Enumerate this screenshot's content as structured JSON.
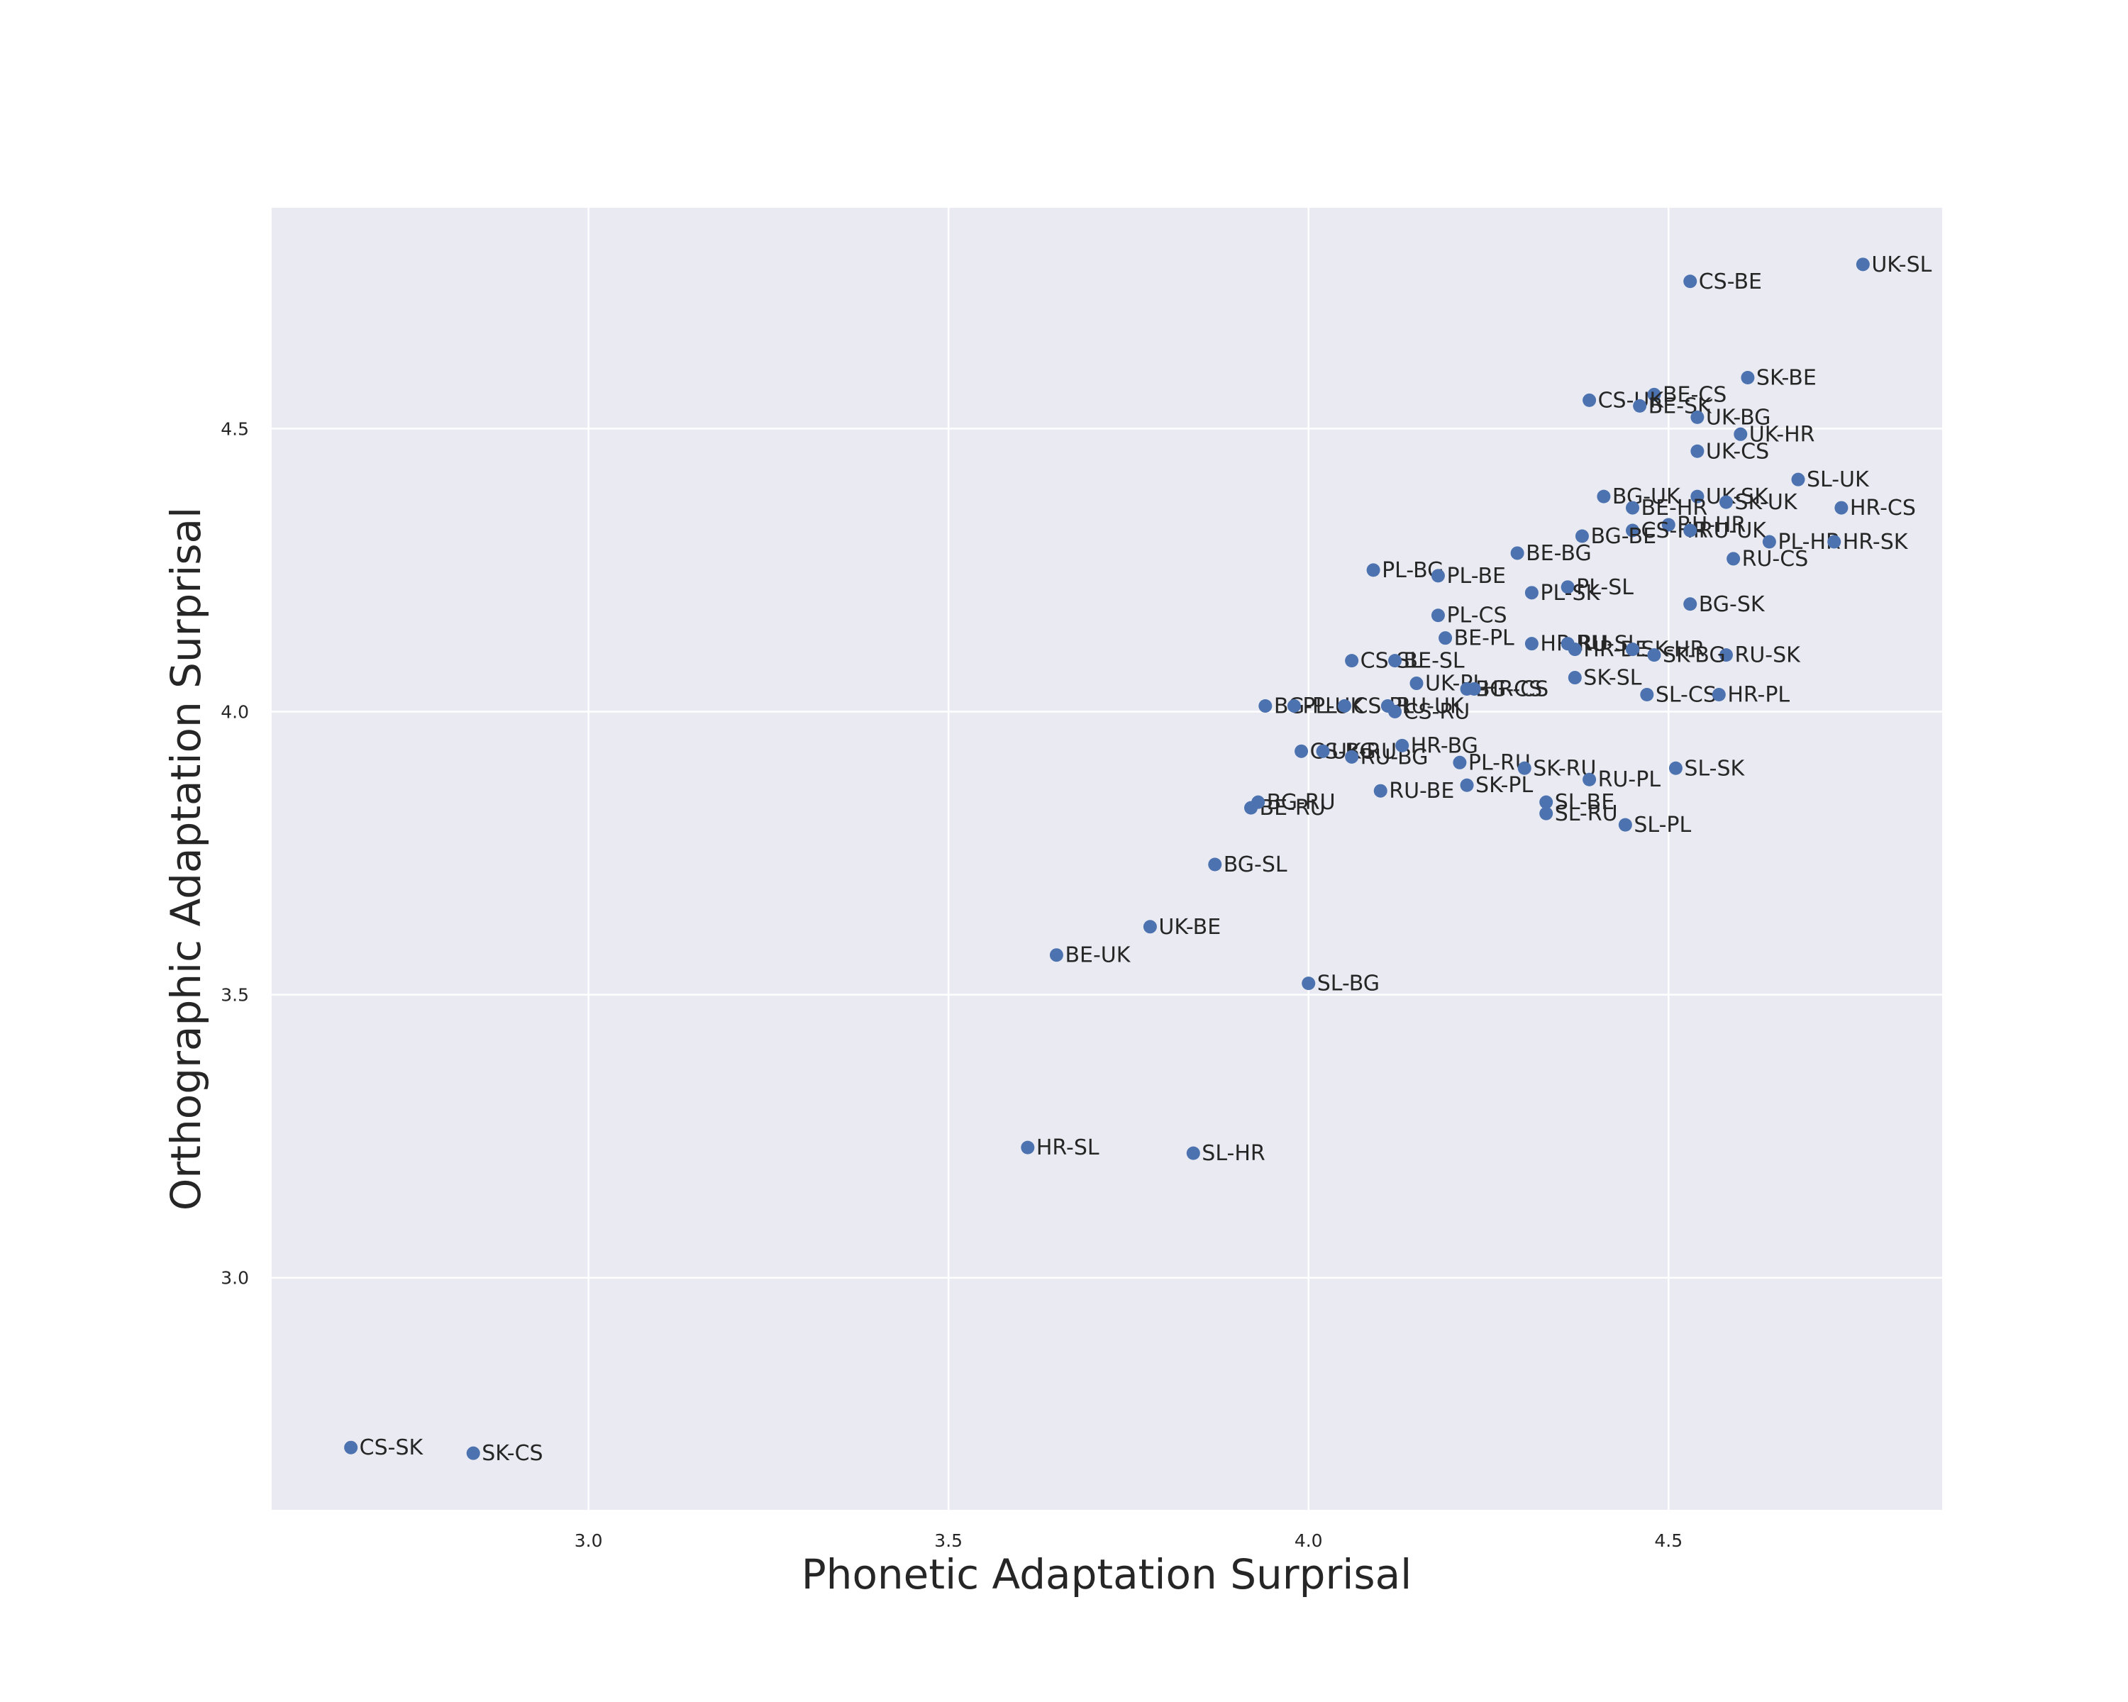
{
  "chart_data": {
    "type": "scatter",
    "title": "",
    "xlabel": "Phonetic Adaptation Surprisal",
    "ylabel": "Orthographic Adaptation Surprisal",
    "xlim": [
      2.56,
      4.88
    ],
    "ylim": [
      2.59,
      4.89
    ],
    "xticks": [
      3.0,
      3.5,
      4.0,
      4.5
    ],
    "yticks": [
      3.0,
      3.5,
      4.0,
      4.5
    ],
    "xtick_labels": [
      "3.0",
      "3.5",
      "4.0",
      "4.5"
    ],
    "ytick_labels": [
      "3.0",
      "3.5",
      "4.0",
      "4.5"
    ],
    "grid": true,
    "colors": {
      "points": "#4C72B0",
      "plot_background": "#EAEAF2",
      "grid": "#FFFFFF",
      "text": "#262626"
    },
    "points": [
      {
        "label": "UK-SL",
        "x": 4.77,
        "y": 4.79
      },
      {
        "label": "CS-BE",
        "x": 4.53,
        "y": 4.76
      },
      {
        "label": "SK-BE",
        "x": 4.61,
        "y": 4.59
      },
      {
        "label": "BE-CS",
        "x": 4.48,
        "y": 4.56
      },
      {
        "label": "CS-UK",
        "x": 4.39,
        "y": 4.55
      },
      {
        "label": "BE-SK",
        "x": 4.46,
        "y": 4.54
      },
      {
        "label": "UK-BG",
        "x": 4.54,
        "y": 4.52
      },
      {
        "label": "UK-HR",
        "x": 4.6,
        "y": 4.49
      },
      {
        "label": "UK-CS",
        "x": 4.54,
        "y": 4.46
      },
      {
        "label": "SL-UK",
        "x": 4.68,
        "y": 4.41
      },
      {
        "label": "BG-UK",
        "x": 4.41,
        "y": 4.38
      },
      {
        "label": "UK-SK",
        "x": 4.54,
        "y": 4.38
      },
      {
        "label": "SK-UK",
        "x": 4.58,
        "y": 4.37
      },
      {
        "label": "HR-CS",
        "x": 4.74,
        "y": 4.36
      },
      {
        "label": "BE-HR",
        "x": 4.45,
        "y": 4.36
      },
      {
        "label": "RU-HR",
        "x": 4.5,
        "y": 4.33
      },
      {
        "label": "CS-HR",
        "x": 4.45,
        "y": 4.32
      },
      {
        "label": "RU-UK",
        "x": 4.53,
        "y": 4.32
      },
      {
        "label": "BG-BE",
        "x": 4.38,
        "y": 4.31
      },
      {
        "label": "PL-HR",
        "x": 4.64,
        "y": 4.3
      },
      {
        "label": "HR-SK",
        "x": 4.73,
        "y": 4.3
      },
      {
        "label": "BE-BG",
        "x": 4.29,
        "y": 4.28
      },
      {
        "label": "RU-CS",
        "x": 4.59,
        "y": 4.27
      },
      {
        "label": "PL-BG",
        "x": 4.09,
        "y": 4.25
      },
      {
        "label": "PL-BE",
        "x": 4.18,
        "y": 4.24
      },
      {
        "label": "PL-SL",
        "x": 4.36,
        "y": 4.22
      },
      {
        "label": "PL-SK",
        "x": 4.31,
        "y": 4.21
      },
      {
        "label": "BG-SK",
        "x": 4.53,
        "y": 4.19
      },
      {
        "label": "PL-CS",
        "x": 4.18,
        "y": 4.17
      },
      {
        "label": "BE-PL",
        "x": 4.19,
        "y": 4.13
      },
      {
        "label": "HR-RU",
        "x": 4.31,
        "y": 4.12
      },
      {
        "label": "RU-SL",
        "x": 4.36,
        "y": 4.12
      },
      {
        "label": "HR-BE",
        "x": 4.37,
        "y": 4.11
      },
      {
        "label": "SK-HR",
        "x": 4.45,
        "y": 4.11
      },
      {
        "label": "RU-SK",
        "x": 4.58,
        "y": 4.1
      },
      {
        "label": "SK-BG",
        "x": 4.48,
        "y": 4.1
      },
      {
        "label": "CS-SL",
        "x": 4.06,
        "y": 4.09
      },
      {
        "label": "BE-SL",
        "x": 4.12,
        "y": 4.09
      },
      {
        "label": "SK-SL",
        "x": 4.37,
        "y": 4.06
      },
      {
        "label": "UK-PL",
        "x": 4.15,
        "y": 4.05
      },
      {
        "label": "BG-CS",
        "x": 4.22,
        "y": 4.04
      },
      {
        "label": "HR-CS",
        "x": 4.23,
        "y": 4.04
      },
      {
        "label": "SL-CS",
        "x": 4.47,
        "y": 4.03
      },
      {
        "label": "HR-PL",
        "x": 4.57,
        "y": 4.03
      },
      {
        "label": "BG-PL",
        "x": 3.94,
        "y": 4.01
      },
      {
        "label": "PL-UK",
        "x": 3.98,
        "y": 4.01
      },
      {
        "label": "CS-PL",
        "x": 4.05,
        "y": 4.01
      },
      {
        "label": "RU-UK",
        "x": 4.11,
        "y": 4.01
      },
      {
        "label": "CS-RU",
        "x": 4.12,
        "y": 4.0
      },
      {
        "label": "CS-BG",
        "x": 3.99,
        "y": 3.93
      },
      {
        "label": "UK-RU",
        "x": 4.02,
        "y": 3.93
      },
      {
        "label": "RU-BG",
        "x": 4.06,
        "y": 3.92
      },
      {
        "label": "HR-BG",
        "x": 4.13,
        "y": 3.94
      },
      {
        "label": "PL-RU",
        "x": 4.21,
        "y": 3.91
      },
      {
        "label": "SK-RU",
        "x": 4.3,
        "y": 3.9
      },
      {
        "label": "SL-SK",
        "x": 4.51,
        "y": 3.9
      },
      {
        "label": "RU-PL",
        "x": 4.39,
        "y": 3.88
      },
      {
        "label": "SK-PL",
        "x": 4.22,
        "y": 3.87
      },
      {
        "label": "RU-BE",
        "x": 4.1,
        "y": 3.86
      },
      {
        "label": "SL-BE",
        "x": 4.33,
        "y": 3.84
      },
      {
        "label": "BE-RU",
        "x": 3.92,
        "y": 3.83
      },
      {
        "label": "BG-RU",
        "x": 3.93,
        "y": 3.84
      },
      {
        "label": "SL-RU",
        "x": 4.33,
        "y": 3.82
      },
      {
        "label": "SL-PL",
        "x": 4.44,
        "y": 3.8
      },
      {
        "label": "BG-SL",
        "x": 3.87,
        "y": 3.73
      },
      {
        "label": "UK-BE",
        "x": 3.78,
        "y": 3.62
      },
      {
        "label": "BE-UK",
        "x": 3.65,
        "y": 3.57
      },
      {
        "label": "SL-BG",
        "x": 4.0,
        "y": 3.52
      },
      {
        "label": "HR-SL",
        "x": 3.61,
        "y": 3.23
      },
      {
        "label": "SL-HR",
        "x": 3.84,
        "y": 3.22
      },
      {
        "label": "CS-SK",
        "x": 2.67,
        "y": 2.7
      },
      {
        "label": "SK-CS",
        "x": 2.84,
        "y": 2.69
      }
    ]
  }
}
